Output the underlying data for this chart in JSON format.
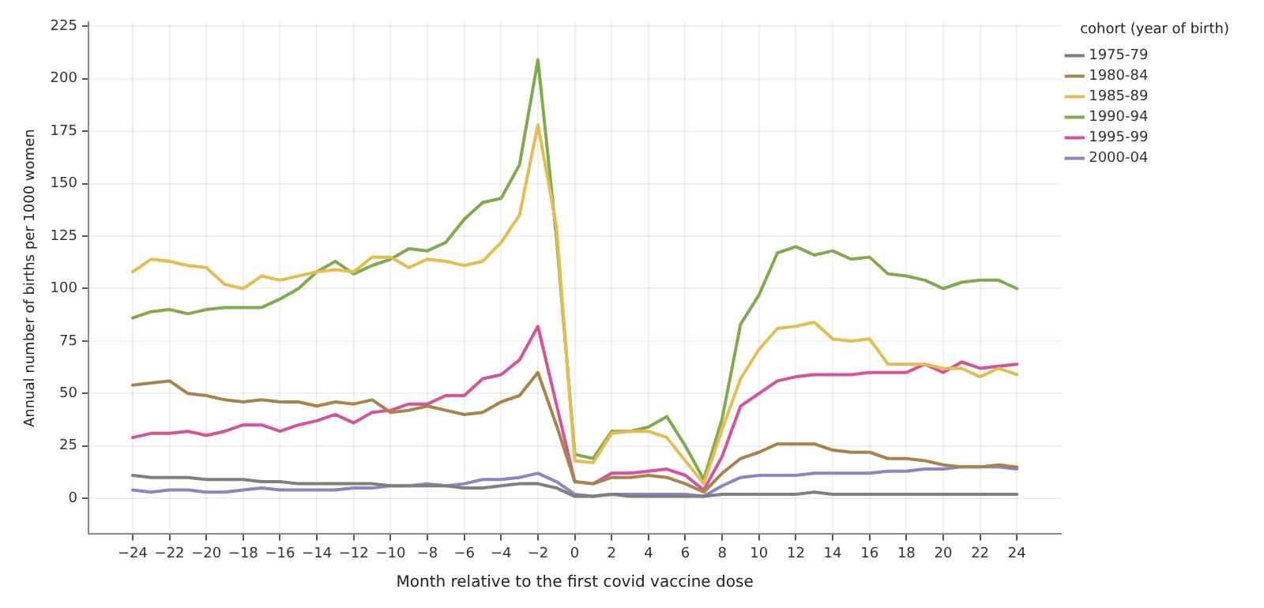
{
  "chart_data": {
    "type": "line",
    "xlabel": "Month relative to the first covid vaccine dose",
    "ylabel": "Annual number of births per 1000 women",
    "legend_title": "cohort (year of birth)",
    "legend": "right",
    "grid": true,
    "marker": "none",
    "line_style": "solid",
    "x": [
      -24,
      -23,
      -22,
      -21,
      -20,
      -19,
      -18,
      -17,
      -16,
      -15,
      -14,
      -13,
      -12,
      -11,
      -10,
      -9,
      -8,
      -7,
      -6,
      -5,
      -4,
      -3,
      -2,
      -1,
      0,
      1,
      2,
      3,
      4,
      5,
      6,
      7,
      8,
      9,
      10,
      11,
      12,
      13,
      14,
      15,
      16,
      17,
      18,
      19,
      20,
      21,
      22,
      23,
      24
    ],
    "xlim": [
      -26.4,
      26.4
    ],
    "xticks": [
      {
        "value": -24,
        "label": "−24"
      },
      {
        "value": -22,
        "label": "−22"
      },
      {
        "value": -20,
        "label": "−20"
      },
      {
        "value": -18,
        "label": "−18"
      },
      {
        "value": -16,
        "label": "−16"
      },
      {
        "value": -14,
        "label": "−14"
      },
      {
        "value": -12,
        "label": "−12"
      },
      {
        "value": -10,
        "label": "−10"
      },
      {
        "value": -8,
        "label": "−8"
      },
      {
        "value": -6,
        "label": "−6"
      },
      {
        "value": -4,
        "label": "−4"
      },
      {
        "value": -2,
        "label": "−2"
      },
      0,
      2,
      4,
      6,
      8,
      10,
      12,
      14,
      16,
      18,
      20,
      22,
      24
    ],
    "ylim": [
      -17,
      227
    ],
    "yticks": [
      0,
      25,
      50,
      75,
      100,
      125,
      150,
      175,
      200,
      225
    ],
    "series": [
      {
        "name": "1975-79",
        "color": "#7f7f7f",
        "values": [
          11,
          10,
          10,
          10,
          9,
          9,
          9,
          8,
          8,
          7,
          7,
          7,
          7,
          7,
          6,
          6,
          6,
          6,
          5,
          5,
          6,
          7,
          7,
          5,
          1,
          1,
          2,
          1,
          1,
          1,
          1,
          1,
          2,
          2,
          2,
          2,
          2,
          3,
          2,
          2,
          2,
          2,
          2,
          2,
          2,
          2,
          2,
          2,
          2
        ]
      },
      {
        "name": "1980-84",
        "color": "#a88448",
        "values": [
          54,
          55,
          56,
          50,
          49,
          47,
          46,
          47,
          46,
          46,
          44,
          46,
          45,
          47,
          41,
          42,
          44,
          42,
          40,
          41,
          46,
          49,
          60,
          35,
          8,
          7,
          10,
          10,
          11,
          10,
          7,
          3,
          12,
          19,
          22,
          26,
          26,
          26,
          23,
          22,
          22,
          19,
          19,
          18,
          16,
          15,
          15,
          16,
          15
        ]
      },
      {
        "name": "1985-89",
        "color": "#e3bd4f",
        "values": [
          108,
          114,
          113,
          111,
          110,
          102,
          100,
          106,
          104,
          106,
          108,
          109,
          108,
          115,
          115,
          110,
          114,
          113,
          111,
          113,
          122,
          135,
          178,
          130,
          18,
          17,
          31,
          32,
          32,
          29,
          18,
          7,
          33,
          57,
          71,
          81,
          82,
          84,
          76,
          75,
          76,
          64,
          64,
          64,
          62,
          62,
          58,
          62,
          59
        ]
      },
      {
        "name": "1990-94",
        "color": "#7eab4c",
        "values": [
          86,
          89,
          90,
          88,
          90,
          91,
          91,
          91,
          95,
          100,
          108,
          113,
          107,
          111,
          114,
          119,
          118,
          122,
          133,
          141,
          143,
          159,
          209,
          125,
          21,
          19,
          32,
          32,
          34,
          39,
          25,
          9,
          38,
          83,
          97,
          117,
          120,
          116,
          118,
          114,
          115,
          107,
          106,
          104,
          100,
          103,
          104,
          104,
          100
        ]
      },
      {
        "name": "1995-99",
        "color": "#d6529a",
        "values": [
          29,
          31,
          31,
          32,
          30,
          32,
          35,
          35,
          32,
          35,
          37,
          40,
          36,
          41,
          42,
          45,
          45,
          49,
          49,
          57,
          59,
          66,
          82,
          45,
          8,
          7,
          12,
          12,
          13,
          14,
          11,
          4,
          20,
          44,
          50,
          56,
          58,
          59,
          59,
          59,
          60,
          60,
          60,
          64,
          60,
          65,
          62,
          63,
          64
        ]
      },
      {
        "name": "2000-04",
        "color": "#8c84c4",
        "values": [
          4,
          3,
          4,
          4,
          3,
          3,
          4,
          5,
          4,
          4,
          4,
          4,
          5,
          5,
          6,
          6,
          7,
          6,
          7,
          9,
          9,
          10,
          12,
          8,
          2,
          1,
          2,
          2,
          2,
          2,
          2,
          1,
          6,
          10,
          11,
          11,
          11,
          12,
          12,
          12,
          12,
          13,
          13,
          14,
          14,
          15,
          15,
          15,
          14
        ]
      }
    ]
  }
}
